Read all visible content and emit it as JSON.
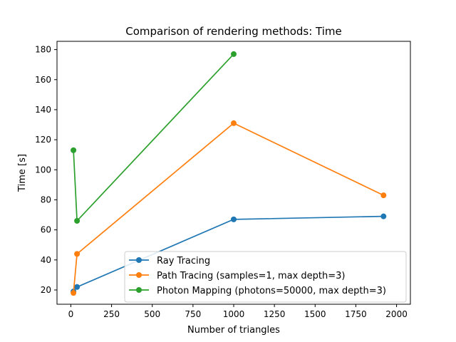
{
  "chart_data": {
    "type": "line",
    "title": "Comparison of rendering methods: Time",
    "xlabel": "Number of triangles",
    "ylabel": "Time [s]",
    "xlim": [
      -85,
      2085
    ],
    "ylim": [
      10.5,
      185.5
    ],
    "xticks": [
      0,
      250,
      500,
      750,
      1000,
      1250,
      1500,
      1750,
      2000
    ],
    "yticks": [
      20,
      40,
      60,
      80,
      100,
      120,
      140,
      160,
      180
    ],
    "grid": false,
    "legend_position": "lower-right",
    "series": [
      {
        "name": "Ray Tracing",
        "color": "#1f77b4",
        "x": [
          16,
          38,
          1000,
          1920
        ],
        "y": [
          19,
          22,
          67,
          69
        ]
      },
      {
        "name": "Path Tracing (samples=1, max depth=3)",
        "color": "#ff7f0e",
        "x": [
          16,
          38,
          1000,
          1920
        ],
        "y": [
          18,
          44,
          131,
          83
        ]
      },
      {
        "name": "Photon Mapping (photons=50000, max depth=3)",
        "color": "#2ca02c",
        "x": [
          16,
          38,
          1000
        ],
        "y": [
          113,
          66,
          177
        ]
      }
    ]
  }
}
